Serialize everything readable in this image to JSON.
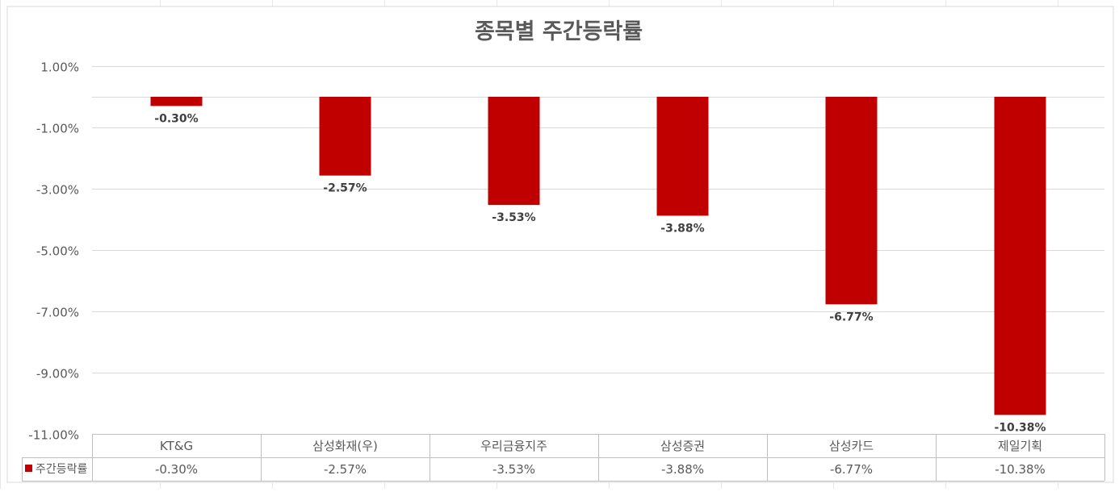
{
  "chart_data": {
    "type": "bar",
    "title": "종목별 주간등락률",
    "categories": [
      "KT&G",
      "삼성화재(우)",
      "우리금융지주",
      "삼성증권",
      "삼성카드",
      "제일기획"
    ],
    "series": [
      {
        "name": "주간등락률",
        "values": [
          -0.3,
          -2.57,
          -3.53,
          -3.88,
          -6.77,
          -10.38
        ],
        "labels": [
          "-0.30%",
          "-2.57%",
          "-3.53%",
          "-3.88%",
          "-6.77%",
          "-10.38%"
        ],
        "table_labels": [
          "-0.30%",
          "-2.57%",
          "-3.53%",
          "-3.88%",
          "-6.77%",
          "-10.38%"
        ]
      }
    ],
    "ylim": [
      -11,
      1
    ],
    "yticks": [
      1,
      -1,
      -3,
      -5,
      -7,
      -9,
      -11
    ],
    "ytick_labels": [
      "1.00%",
      "-1.00%",
      "-3.00%",
      "-5.00%",
      "-7.00%",
      "-9.00%",
      "-11.00%"
    ],
    "grid": true,
    "legend": "data-table",
    "colors": {
      "bar": "#c00000",
      "grid": "#d9d9d9",
      "axis": "#bfbfbf",
      "title": "#595959",
      "tick": "#595959",
      "label": "#404040",
      "table_text": "#595959",
      "sheet_grid": "#e7e7e7"
    }
  }
}
